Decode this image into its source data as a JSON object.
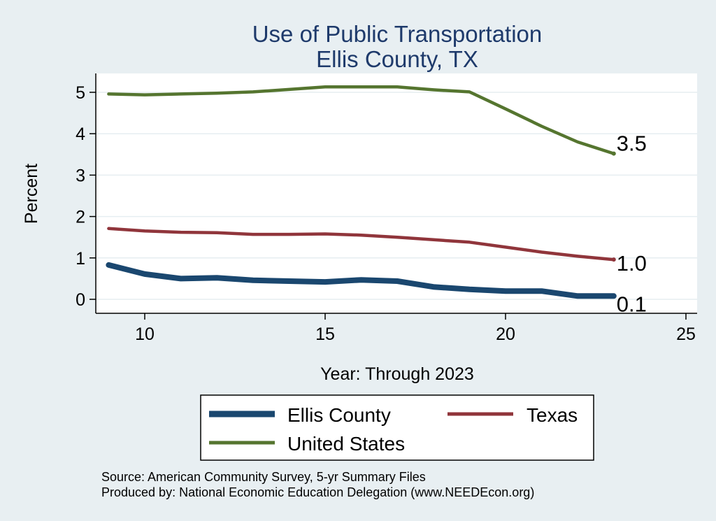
{
  "chart_data": {
    "type": "line",
    "title": [
      "Use of Public Transportation",
      "Ellis County, TX"
    ],
    "xlabel": "Year: Through 2023",
    "ylabel": "Percent",
    "xlim": [
      9,
      25
    ],
    "ylim": [
      0,
      5
    ],
    "xticks": [
      10,
      15,
      20,
      25
    ],
    "yticks": [
      0,
      1,
      2,
      3,
      4,
      5
    ],
    "grid": true,
    "legend_position": "bottom",
    "series": [
      {
        "name": "Ellis County",
        "color": "#1a476f",
        "x": [
          9,
          10,
          11,
          12,
          13,
          14,
          15,
          16,
          17,
          18,
          19,
          20,
          21,
          22,
          23
        ],
        "values": [
          0.83,
          0.61,
          0.5,
          0.52,
          0.46,
          0.44,
          0.42,
          0.47,
          0.44,
          0.3,
          0.24,
          0.2,
          0.2,
          0.08,
          0.08
        ],
        "end_label": "0.1"
      },
      {
        "name": "Texas",
        "color": "#90353b",
        "x": [
          9,
          10,
          11,
          12,
          13,
          14,
          15,
          16,
          17,
          18,
          19,
          20,
          21,
          22,
          23
        ],
        "values": [
          1.71,
          1.65,
          1.62,
          1.61,
          1.57,
          1.57,
          1.58,
          1.55,
          1.5,
          1.44,
          1.38,
          1.26,
          1.14,
          1.04,
          0.96
        ],
        "end_label": "1.0"
      },
      {
        "name": "United States",
        "color": "#55752f",
        "x": [
          9,
          10,
          11,
          12,
          13,
          14,
          15,
          16,
          17,
          18,
          19,
          20,
          21,
          22,
          23
        ],
        "values": [
          4.96,
          4.94,
          4.96,
          4.98,
          5.01,
          5.07,
          5.13,
          5.13,
          5.13,
          5.06,
          5.01,
          4.6,
          4.18,
          3.8,
          3.52
        ],
        "end_label": "3.5"
      }
    ]
  },
  "footer": {
    "source": "Source: American Community Survey, 5-yr Summary Files",
    "producer": "Produced by: National Economic Education Delegation (www.NEEDEcon.org)"
  }
}
